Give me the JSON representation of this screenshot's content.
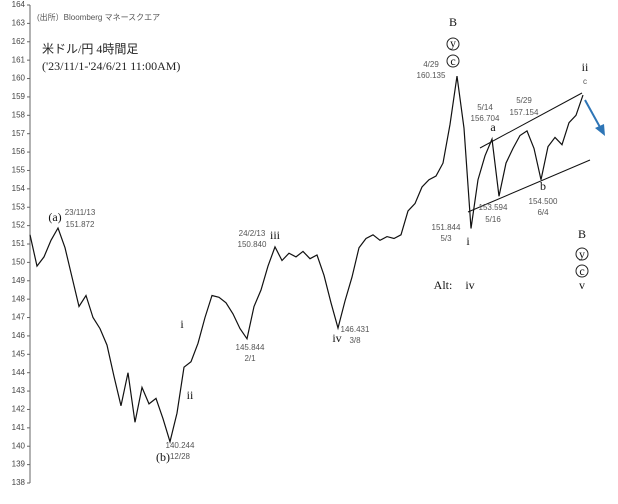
{
  "chart_data": {
    "type": "line",
    "source": "(出所）Bloomberg マネースクエア",
    "title": "米ドル/円 4時間足",
    "subtitle": "('23/11/1-'24/6/21 11:00AM)",
    "values": [
      151.5,
      149.8,
      150.3,
      151.2,
      151.872,
      150.8,
      149.2,
      147.6,
      148.2,
      147,
      146.4,
      145.5,
      143.8,
      142.2,
      144,
      141.3,
      143.2,
      142.3,
      142.6,
      141.5,
      140.244,
      141.8,
      144.3,
      144.6,
      145.6,
      147,
      148.2,
      148.1,
      147.8,
      147.2,
      146.4,
      145.844,
      147.6,
      148.5,
      149.8,
      150.84,
      150.1,
      150.5,
      150.3,
      150.6,
      150.2,
      150.4,
      149.3,
      147.8,
      146.431,
      147.9,
      149.2,
      150.8,
      151.3,
      151.5,
      151.2,
      151.4,
      151.3,
      151.5,
      152.8,
      153.2,
      154.1,
      154.5,
      154.7,
      155.4,
      157.5,
      160.135,
      157.3,
      151.844,
      154.5,
      155.8,
      156.704,
      153.594,
      155.4,
      156.2,
      156.9,
      157.154,
      156.2,
      154.5,
      156.3,
      156.8,
      156.4,
      157.6,
      158,
      159.1
    ],
    "color": "#111111",
    "ylim": [
      138,
      164
    ],
    "yticks": [
      138,
      139,
      140,
      141,
      142,
      143,
      144,
      145,
      146,
      147,
      148,
      149,
      150,
      151,
      152,
      153,
      154,
      155,
      156,
      157,
      158,
      159,
      160,
      161,
      162,
      163,
      164
    ],
    "annotations": [
      "(a)",
      "23/11/13",
      "151.872",
      "(b)",
      "140.244",
      "12/28",
      "i",
      "ii",
      "24/2/13",
      "150.840",
      "iii",
      "145.844",
      "2/1",
      "iv",
      "146.431",
      "3/8",
      "B",
      "y",
      "c",
      "4/29",
      "160.135",
      "5/14",
      "156.704",
      "a",
      "5/29",
      "157.154",
      "ii",
      "c",
      "151.844",
      "5/3",
      "i",
      "153.594",
      "5/16",
      "b",
      "154.500",
      "6/4",
      "Alt:",
      "iv",
      "B",
      "y",
      "c",
      "v"
    ]
  }
}
